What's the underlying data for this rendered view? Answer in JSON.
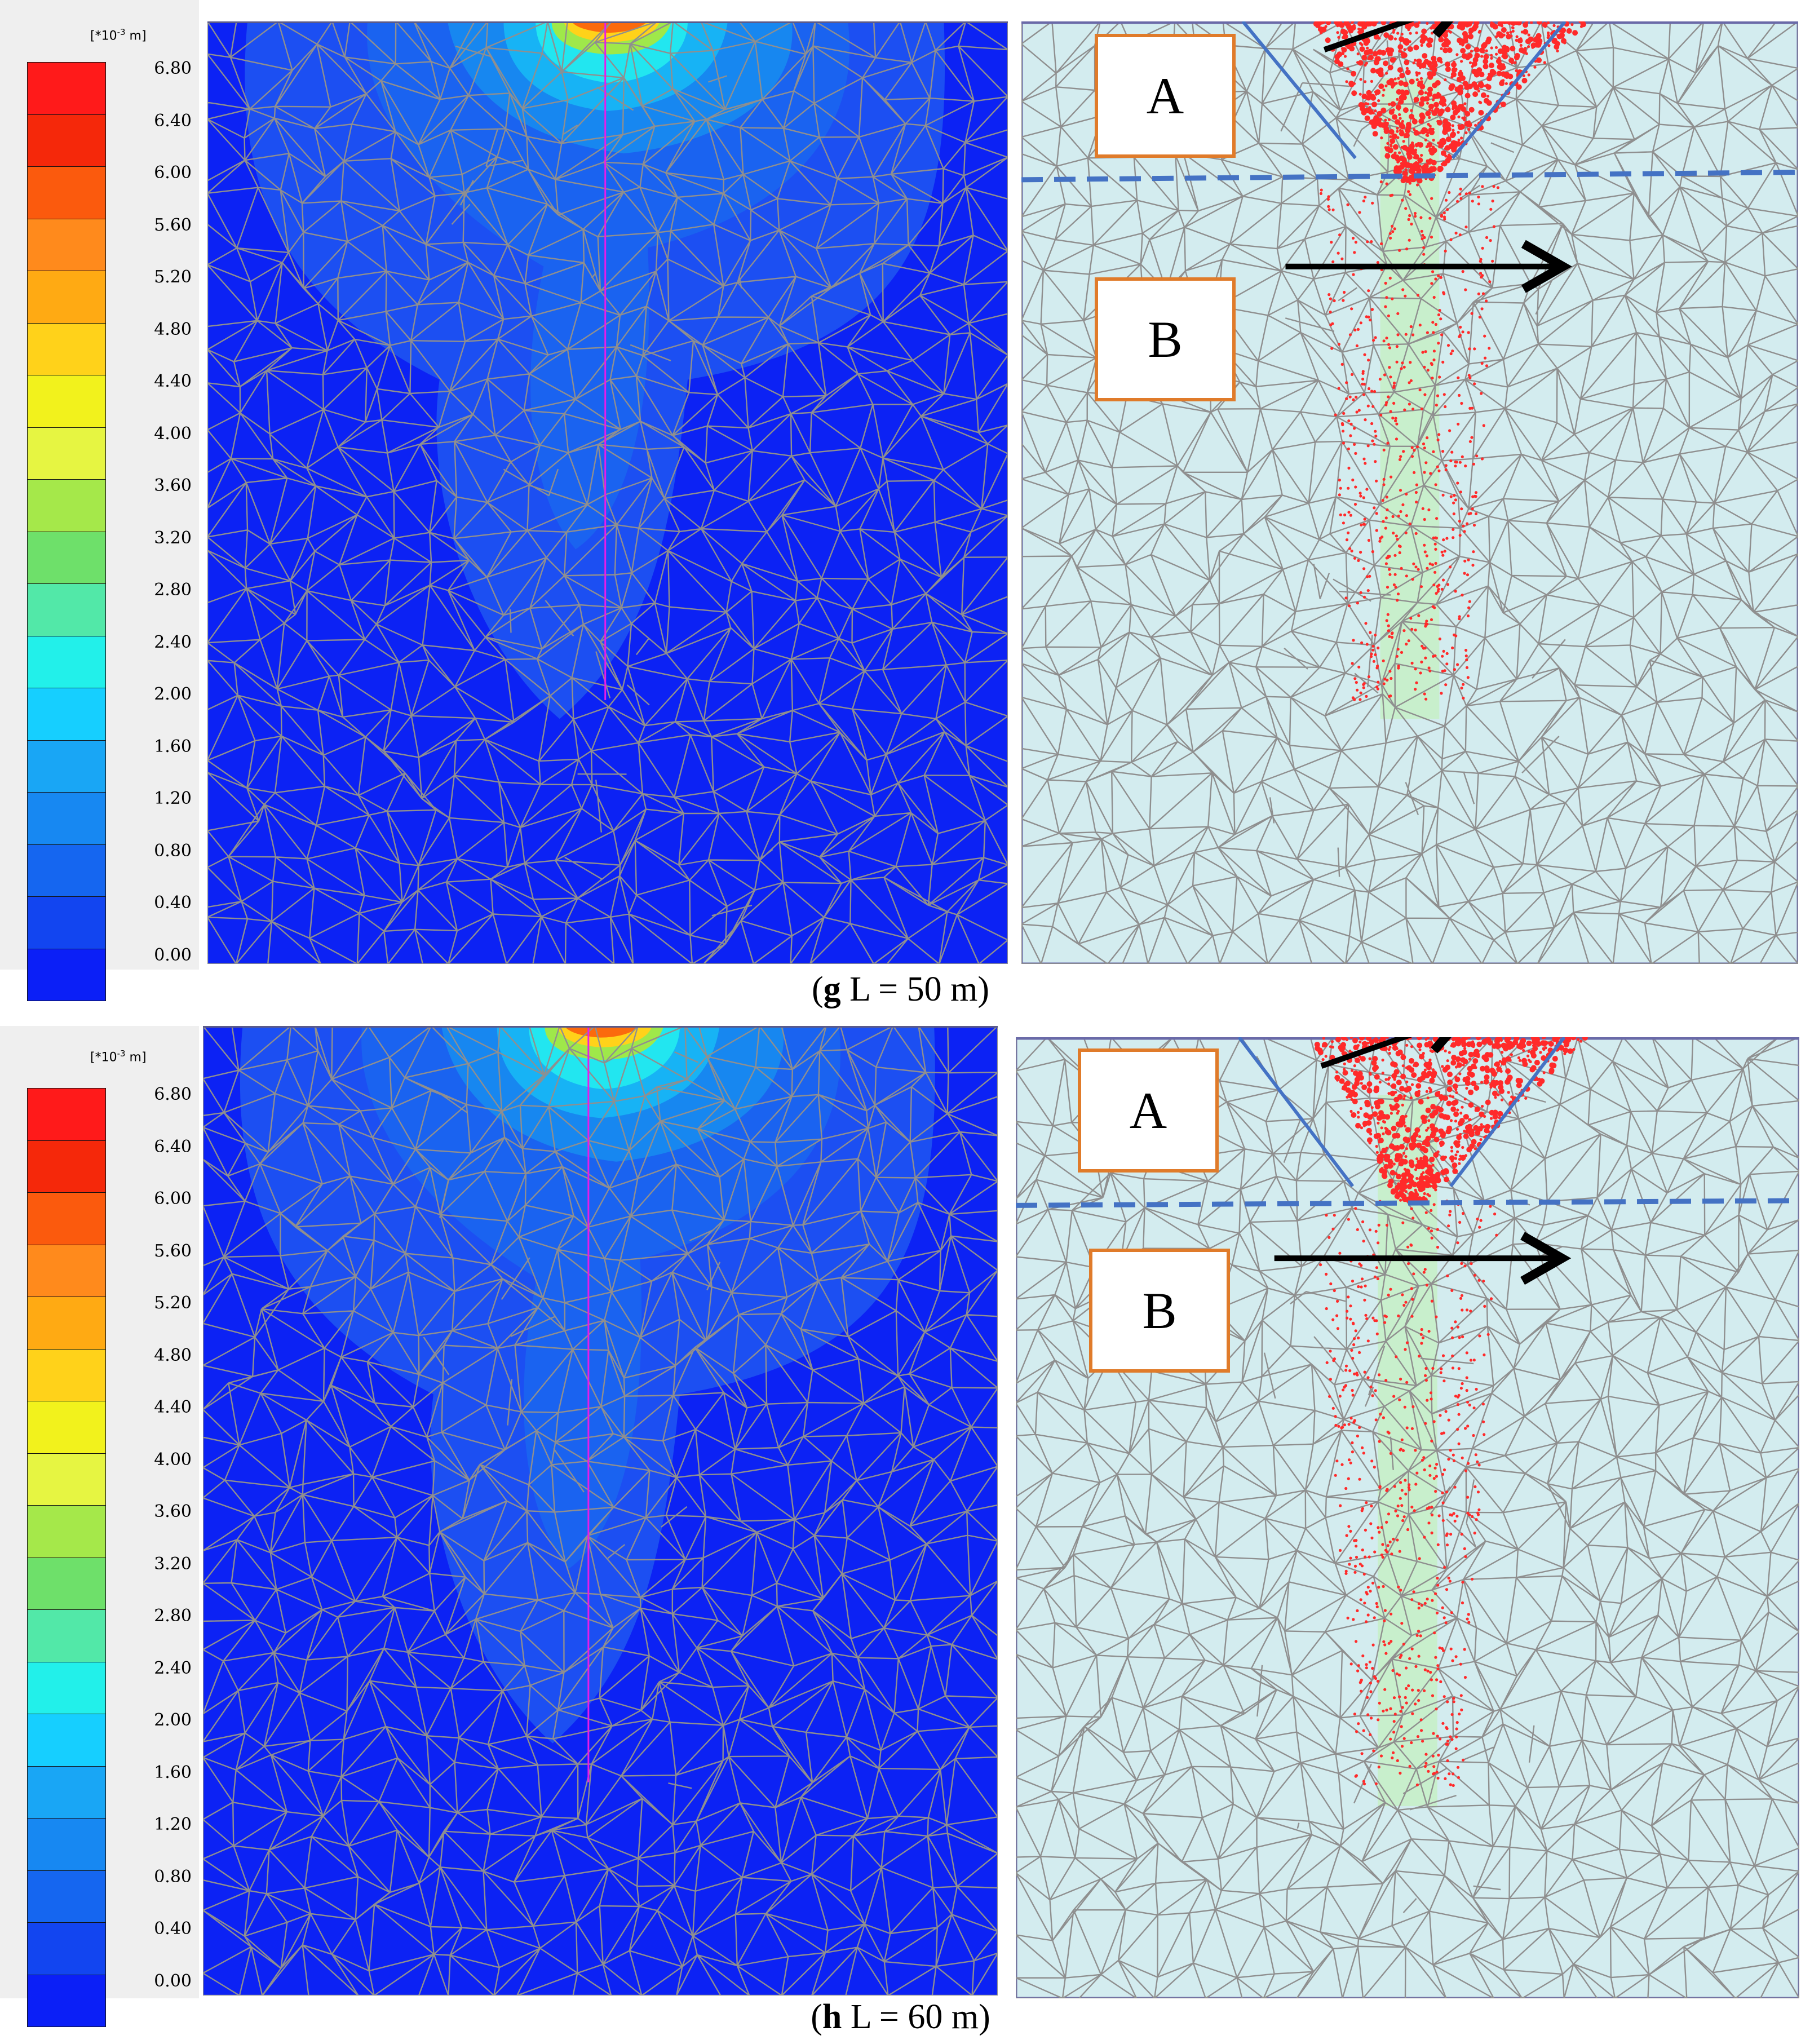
{
  "legend": {
    "unit_base": "[*10",
    "unit_exp": "-3",
    "unit_tail": " m]",
    "ticks": [
      "6.80",
      "6.40",
      "6.00",
      "5.60",
      "5.20",
      "4.80",
      "4.40",
      "4.00",
      "3.60",
      "3.20",
      "2.80",
      "2.40",
      "2.00",
      "1.60",
      "1.20",
      "0.80",
      "0.40",
      "0.00"
    ],
    "colors": [
      "#ff1a1a",
      "#f5280a",
      "#fb5a0d",
      "#ff8a1c",
      "#ffaa13",
      "#ffd21a",
      "#f2f21c",
      "#e6f542",
      "#a5e84a",
      "#6ee06a",
      "#52e8a8",
      "#22f0ea",
      "#16cfff",
      "#19a6f5",
      "#1788f2",
      "#1566f0",
      "#1245f0",
      "#0b1ff7"
    ]
  },
  "figures": [
    {
      "letter": "g",
      "caption_text": " L = 50 m",
      "label_a": "A",
      "label_b": "B"
    },
    {
      "letter": "h",
      "caption_text": " L = 60 m",
      "label_a": "A",
      "label_b": "B"
    }
  ],
  "colors": {
    "deep_blue": "#0c22f4",
    "mesh_line": "#8f8f8f",
    "light_panel": "#d3ecef",
    "pile_green": "#c8efcc",
    "label_border": "#e07b2a",
    "guide_blue": "#4472c4",
    "arrow": "#000000",
    "pile_marker": "#e81ce8",
    "plastic_points": "#ff2a2a"
  }
}
